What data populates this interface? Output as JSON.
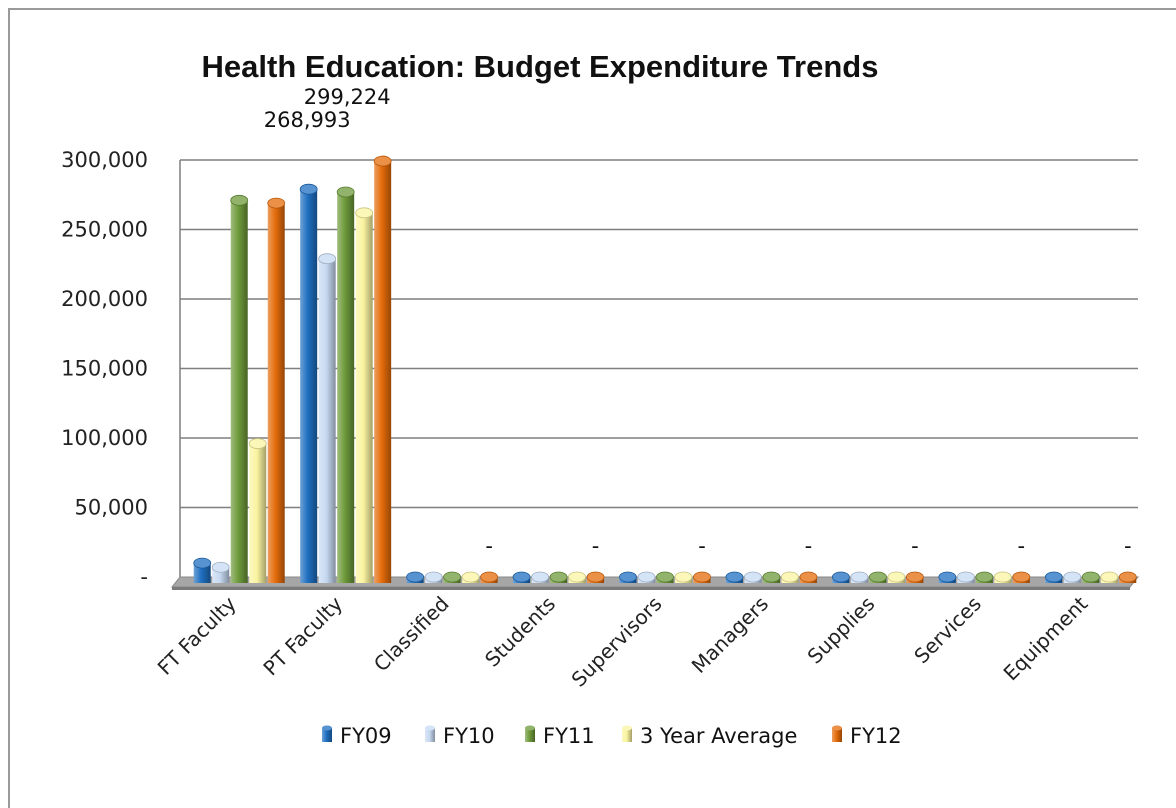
{
  "chart_data": {
    "type": "bar",
    "title": "Health Education: Budget Expenditure Trends",
    "xlabel": "",
    "ylabel": "",
    "ylim": [
      0,
      300000
    ],
    "yticks": [
      0,
      50000,
      100000,
      150000,
      200000,
      250000,
      300000
    ],
    "ytick_labels": [
      "-",
      "50,000",
      "100,000",
      "150,000",
      "200,000",
      "250,000",
      "300,000"
    ],
    "grid": true,
    "legend_position": "bottom",
    "categories": [
      "FT Faculty",
      "PT Faculty",
      "Classified",
      "Students",
      "Supervisors",
      "Managers",
      "Supplies",
      "Services",
      "Equipment"
    ],
    "series": [
      {
        "name": "FY09",
        "color": "#1f6fc0",
        "values": [
          10000,
          279000,
          0,
          0,
          0,
          0,
          0,
          0,
          0
        ]
      },
      {
        "name": "FY10",
        "color": "#c6d9f1",
        "values": [
          7000,
          229000,
          0,
          0,
          0,
          0,
          0,
          0,
          0
        ]
      },
      {
        "name": "FY11",
        "color": "#6e9a3a",
        "values": [
          271000,
          277000,
          0,
          0,
          0,
          0,
          0,
          0,
          0
        ]
      },
      {
        "name": "3 Year Average",
        "color": "#faf4a0",
        "values": [
          96000,
          262000,
          0,
          0,
          0,
          0,
          0,
          0,
          0
        ]
      },
      {
        "name": "FY12",
        "color": "#e46c0a",
        "values": [
          268993,
          299224,
          0,
          0,
          0,
          0,
          0,
          0,
          0
        ]
      }
    ],
    "data_labels": [
      {
        "series": "FY12",
        "category": "FT Faculty",
        "text": "268,993"
      },
      {
        "series": "FY12",
        "category": "PT Faculty",
        "text": "299,224"
      },
      {
        "series": "FY12",
        "category": "Classified",
        "text": "-"
      },
      {
        "series": "FY12",
        "category": "Students",
        "text": "-"
      },
      {
        "series": "FY12",
        "category": "Supervisors",
        "text": "-"
      },
      {
        "series": "FY12",
        "category": "Managers",
        "text": "-"
      },
      {
        "series": "FY12",
        "category": "Supplies",
        "text": "-"
      },
      {
        "series": "FY12",
        "category": "Services",
        "text": "-"
      },
      {
        "series": "FY12",
        "category": "Equipment",
        "text": "-"
      }
    ]
  }
}
